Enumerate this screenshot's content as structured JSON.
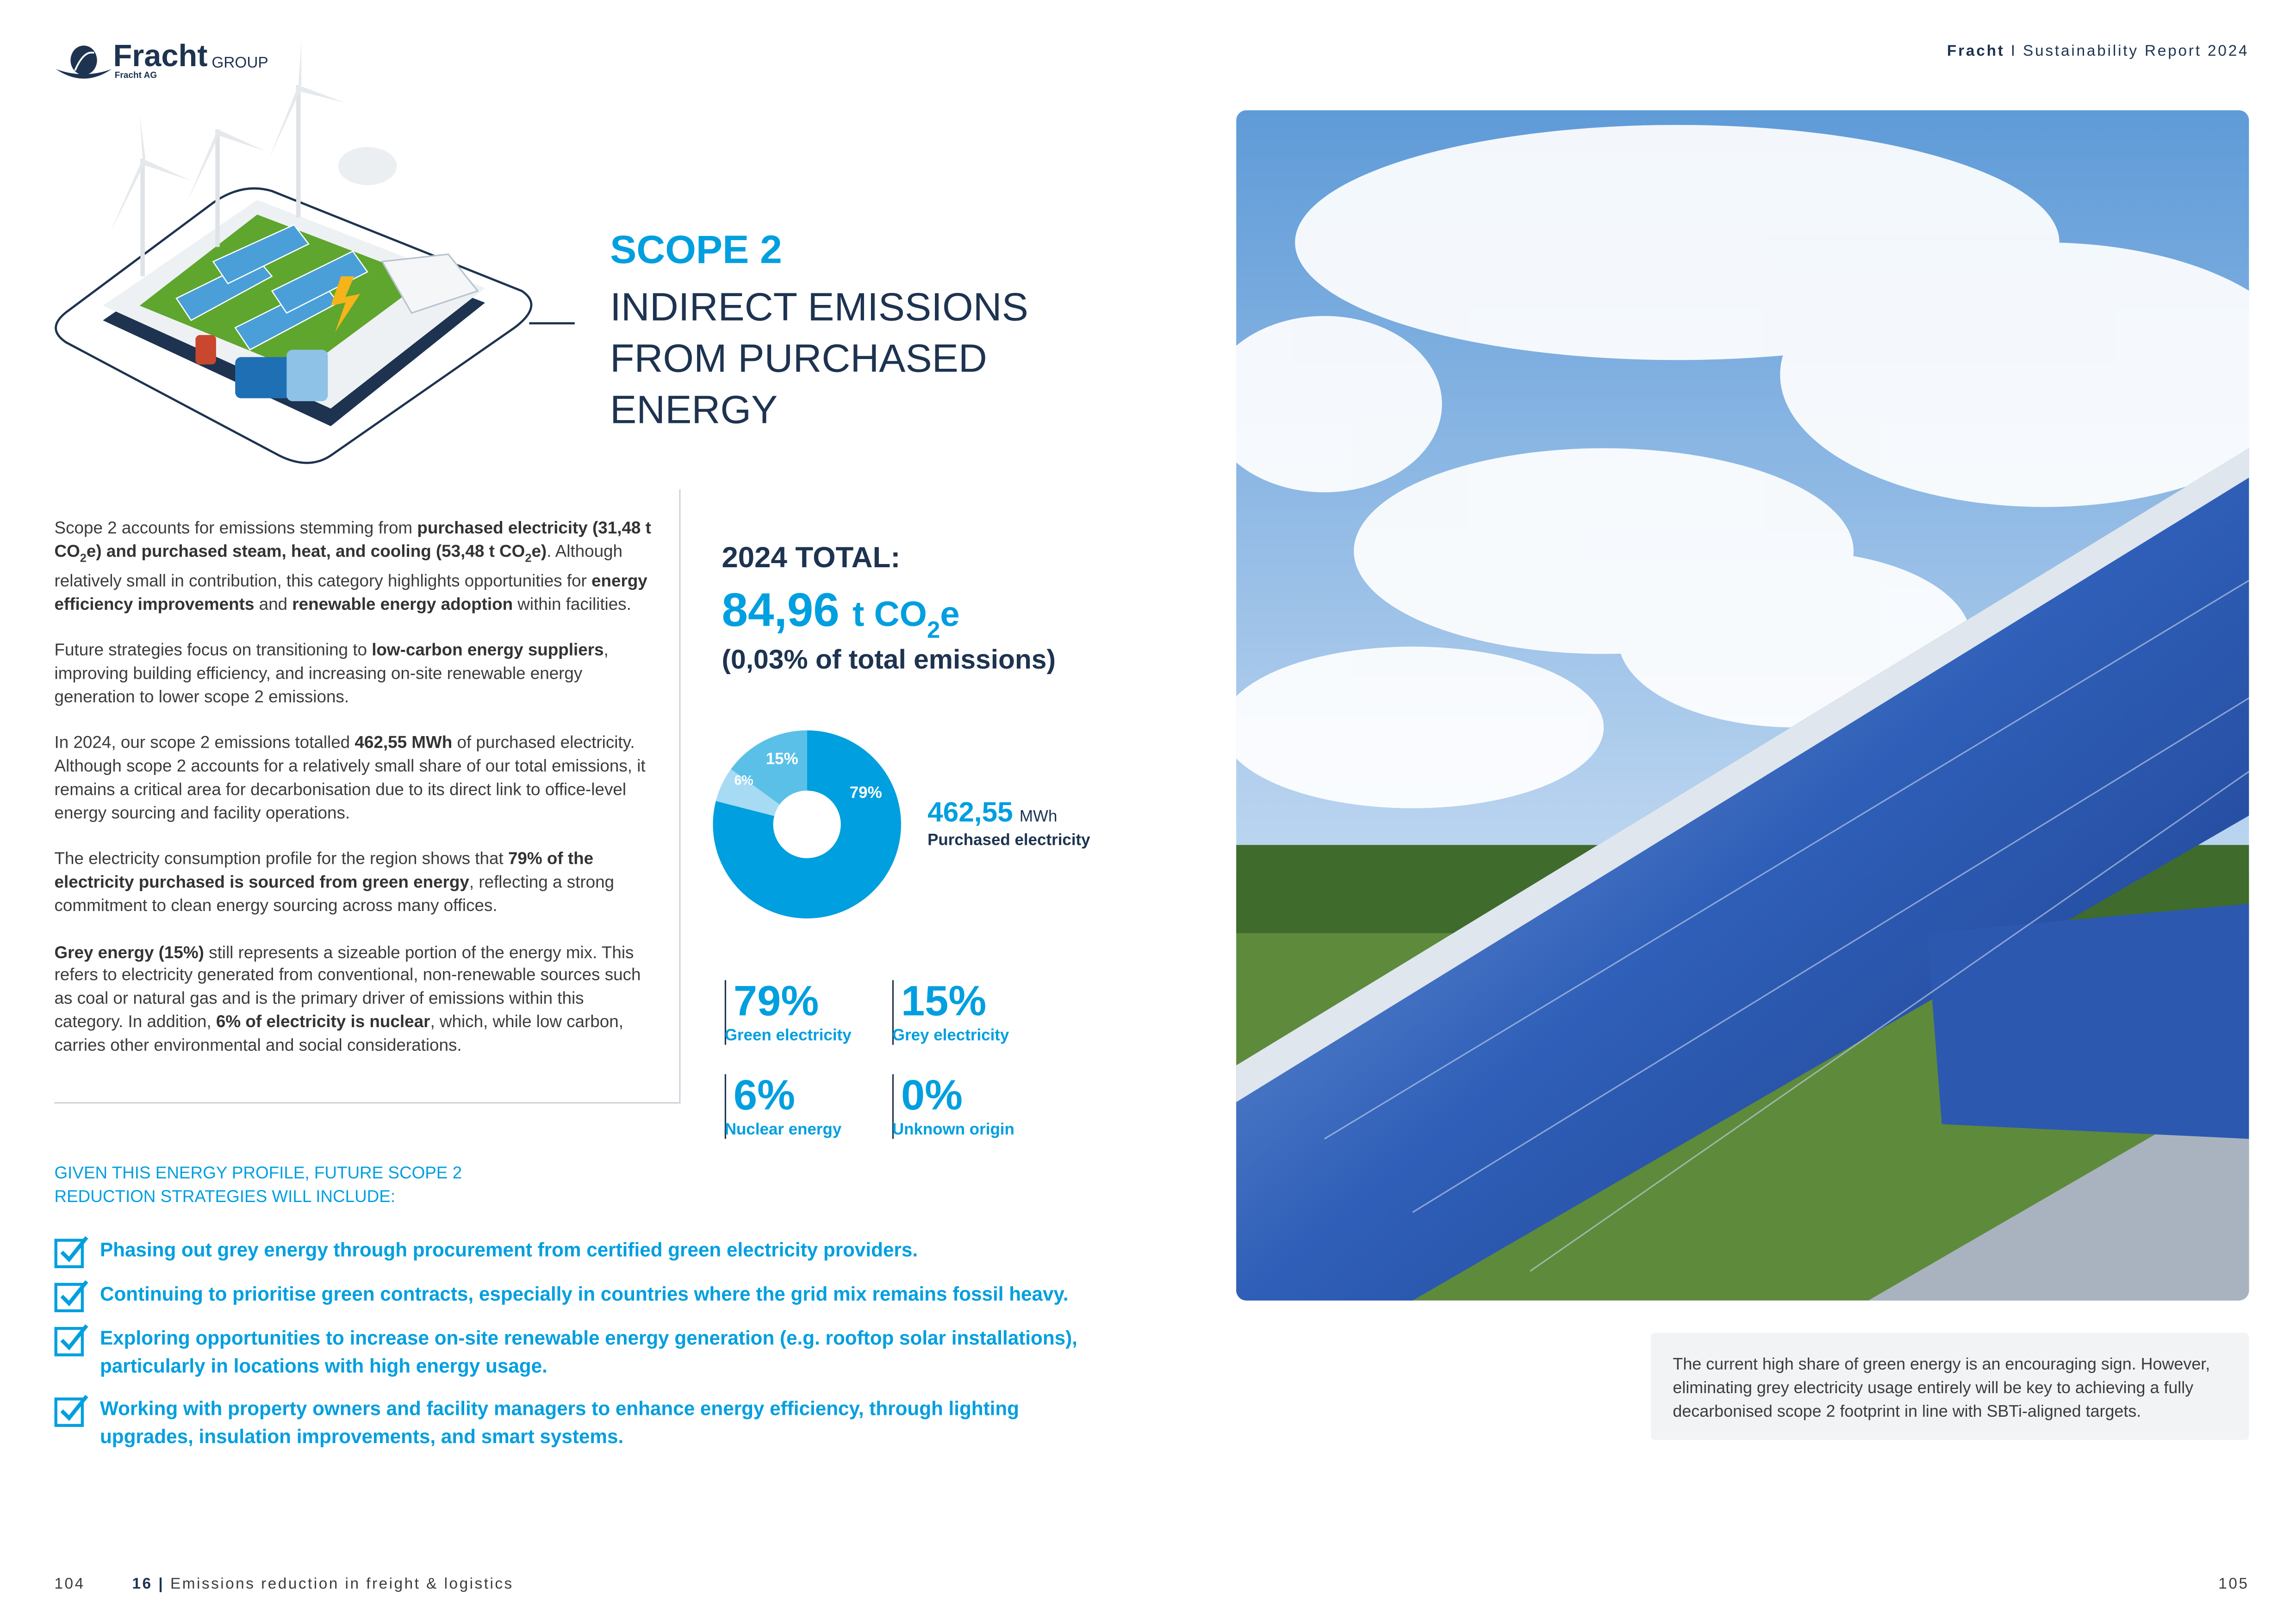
{
  "logo": {
    "name": "Fracht",
    "suffix": "GROUP",
    "sub": "Fracht AG"
  },
  "header": {
    "brand": "Fracht",
    "separator": "I",
    "report": "Sustainability Report 2024"
  },
  "title": {
    "scope": "SCOPE 2",
    "lines": [
      "INDIRECT EMISSIONS",
      "FROM PURCHASED",
      "ENERGY"
    ]
  },
  "body_paragraphs": [
    [
      {
        "t": "Scope 2 accounts for emissions stemming from "
      },
      {
        "t": "purchased electricity (31,48 t CO",
        "b": true
      },
      {
        "t": "2",
        "b": true,
        "sub": true
      },
      {
        "t": "e) and purchased steam, heat, and cooling (53,48 t CO",
        "b": true
      },
      {
        "t": "2",
        "b": true,
        "sub": true
      },
      {
        "t": "e)",
        "b": true
      },
      {
        "t": ". Although relatively small in contribution, this category highlights opportunities for "
      },
      {
        "t": "energy efficiency improvements",
        "b": true
      },
      {
        "t": " and "
      },
      {
        "t": "renewable energy adoption",
        "b": true
      },
      {
        "t": " within facilities."
      }
    ],
    [
      {
        "t": "Future strategies focus on transitioning to "
      },
      {
        "t": "low-carbon energy suppliers",
        "b": true
      },
      {
        "t": ", improving building efficiency, and increasing on-site renewable energy generation to lower scope 2 emissions."
      }
    ],
    [
      {
        "t": "In 2024, our scope 2 emissions totalled "
      },
      {
        "t": "462,55 MWh",
        "b": true
      },
      {
        "t": " of purchased electricity. Although scope 2 accounts for a relatively small share of our total emissions, it remains a critical area for decarbonisation due to its direct link to office-level energy sourcing and facility operations."
      }
    ],
    [
      {
        "t": "The electricity consumption profile for the region shows that "
      },
      {
        "t": "79% of the electricity purchased is sourced from green energy",
        "b": true
      },
      {
        "t": ", reflecting a strong commitment to clean energy sourcing across many offices."
      }
    ],
    [
      {
        "t": "Grey energy (15%)",
        "b": true
      },
      {
        "t": " still represents a sizeable portion of the energy mix. This refers to electricity generated from conventional, non-renewable sources such as coal or natural gas and is the primary driver of emissions within this category. In addition, "
      },
      {
        "t": "6% of electricity is nuclear",
        "b": true
      },
      {
        "t": ", which, while low carbon, carries other environmental and social considerations."
      }
    ]
  ],
  "total": {
    "label": "2024 TOTAL:",
    "value": "84,96",
    "unit_prefix": "t CO",
    "unit_sub": "2",
    "unit_suffix": "e",
    "share": "(0,03% of total emissions)"
  },
  "electricity": {
    "value": "462,55",
    "unit": "MWh",
    "label": "Purchased electricity"
  },
  "chart_data": {
    "type": "pie",
    "donut": true,
    "categories": [
      "Green electricity",
      "Nuclear energy",
      "Grey electricity"
    ],
    "values": [
      79,
      6,
      15
    ],
    "labels": [
      "79%",
      "6%",
      "15%"
    ],
    "colors": [
      "#009fdf",
      "#a6dbf3",
      "#5bc0e8"
    ]
  },
  "stats": [
    {
      "value": "79%",
      "label": "Green electricity"
    },
    {
      "value": "15%",
      "label": "Grey electricity"
    },
    {
      "value": "6%",
      "label": "Nuclear energy"
    },
    {
      "value": "0%",
      "label": "Unknown origin"
    }
  ],
  "strategies": {
    "heading": "Given this energy profile, future scope 2 reduction strategies will include:",
    "items": [
      "Phasing out grey energy through procurement from certified green electricity providers.",
      "Continuing to prioritise green contracts, especially in countries where the grid mix remains fossil heavy.",
      "Exploring opportunities to increase on-site renewable energy generation (e.g. rooftop solar installations), particularly in locations with high energy usage.",
      "Working with property owners and facility managers to enhance energy efficiency, through lighting upgrades, insulation improvements, and smart systems."
    ]
  },
  "note": "The current high share of green energy is an encouraging sign. However, eliminating grey electricity usage entirely will be key to achieving a fully decarbonised scope 2 footprint in line with SBTi-aligned targets.",
  "footer": {
    "left_page": "104",
    "section_number": "16",
    "section_sep": "|",
    "section_title": "Emissions reduction in freight & logistics",
    "right_page": "105"
  },
  "colors": {
    "brand_blue": "#009fdf",
    "navy": "#1d3350"
  },
  "icons": {
    "logo": "fracht-globe-logo",
    "check": "checkbox-checked-icon",
    "illustration": "solar-wind-facility-illustration",
    "photo": "solar-panels-photo"
  }
}
